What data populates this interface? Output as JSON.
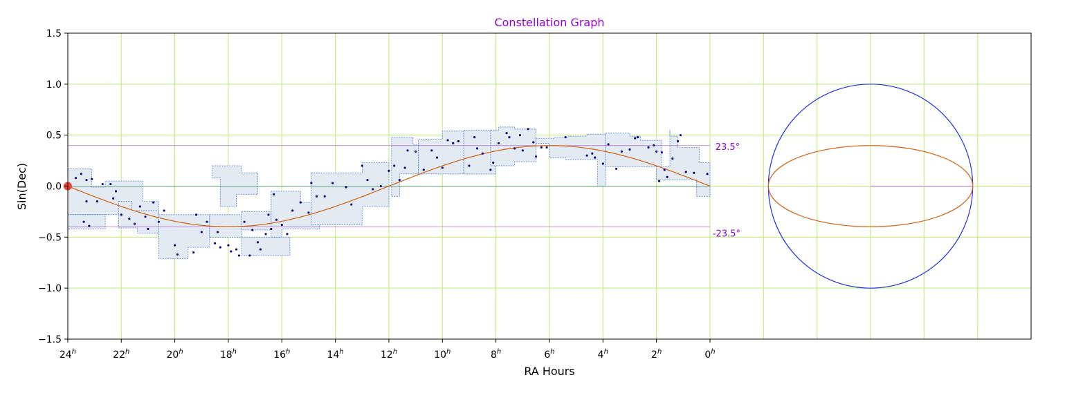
{
  "chart_data": {
    "type": "line",
    "title": "Constellation Graph",
    "xlabel": "RA Hours",
    "ylabel": "Sin(Dec)",
    "xlim": [
      24,
      0
    ],
    "ylim": [
      -1.5,
      1.5
    ],
    "x_ticks": [
      {
        "value": 24,
        "label": "24",
        "sup": "h"
      },
      {
        "value": 22,
        "label": "22",
        "sup": "h"
      },
      {
        "value": 20,
        "label": "20",
        "sup": "h"
      },
      {
        "value": 18,
        "label": "18",
        "sup": "h"
      },
      {
        "value": 16,
        "label": "16",
        "sup": "h"
      },
      {
        "value": 14,
        "label": "14",
        "sup": "h"
      },
      {
        "value": 12,
        "label": "12",
        "sup": "h"
      },
      {
        "value": 10,
        "label": "10",
        "sup": "h"
      },
      {
        "value": 8,
        "label": "8",
        "sup": "h"
      },
      {
        "value": 6,
        "label": "6",
        "sup": "h"
      },
      {
        "value": 4,
        "label": "4",
        "sup": "h"
      },
      {
        "value": 2,
        "label": "2",
        "sup": "h"
      },
      {
        "value": 0,
        "label": "0",
        "sup": "h"
      }
    ],
    "y_ticks": [
      {
        "value": 1.5,
        "label": "1.5"
      },
      {
        "value": 1.0,
        "label": "1.0"
      },
      {
        "value": 0.5,
        "label": "0.5"
      },
      {
        "value": 0.0,
        "label": "0.0"
      },
      {
        "value": -0.5,
        "label": "−0.5"
      },
      {
        "value": -1.0,
        "label": "−1.0"
      },
      {
        "value": -1.5,
        "label": "−1.5"
      }
    ],
    "grid": true,
    "colors": {
      "title": "#9400d3",
      "grid": "#b8ee70",
      "ecliptic": "#d2691e",
      "equator": "#2e8b57",
      "tropic": "#b36ad8",
      "circle": "#1f2fe8",
      "star": "#0a0a80",
      "marker": "#ee4433",
      "region_fill": "#e4eaf2",
      "region_edge": "#4a7fd8"
    },
    "annotations": [
      {
        "text": "23.5°",
        "x": -0.2,
        "y": 0.39
      },
      {
        "text": "-23.5°",
        "x": -0.1,
        "y": -0.46
      }
    ],
    "tropic_lines": [
      {
        "name": "tropic-north",
        "y": 0.398,
        "x": [
          24,
          0
        ]
      },
      {
        "name": "tropic-south",
        "y": -0.398,
        "x": [
          24,
          0
        ]
      }
    ],
    "equator_line": {
      "y": 0,
      "x": [
        24,
        0
      ]
    },
    "ecliptic": {
      "amplitude": 0.398,
      "x_start": 24,
      "x_end": 0
    },
    "marker": {
      "x": 24,
      "y": 0
    },
    "circle_view": {
      "center_x": -6,
      "center_y": 0,
      "radius": 1.0,
      "ellipse_ry": 0.398,
      "radius_line_to_x": -4
    },
    "regions": [
      [
        [
          24,
          0.17
        ],
        [
          23.1,
          0.17
        ],
        [
          23.1,
          -0.01
        ],
        [
          22.6,
          -0.01
        ],
        [
          22.6,
          0.05
        ],
        [
          21.2,
          0.05
        ],
        [
          21.2,
          -0.15
        ],
        [
          20.6,
          -0.15
        ],
        [
          20.6,
          -0.28
        ],
        [
          24,
          -0.28
        ]
      ],
      [
        [
          24,
          -0.28
        ],
        [
          22.6,
          -0.28
        ],
        [
          22.6,
          -0.42
        ],
        [
          24,
          -0.42
        ]
      ],
      [
        [
          22.1,
          -0.15
        ],
        [
          21.6,
          -0.15
        ],
        [
          21.6,
          -0.24
        ],
        [
          20.6,
          -0.24
        ],
        [
          20.6,
          -0.46
        ],
        [
          21.4,
          -0.46
        ],
        [
          21.4,
          -0.41
        ],
        [
          22.1,
          -0.41
        ]
      ],
      [
        [
          20.6,
          -0.28
        ],
        [
          18.7,
          -0.28
        ],
        [
          18.7,
          -0.6
        ],
        [
          19.5,
          -0.6
        ],
        [
          19.5,
          -0.71
        ],
        [
          20.6,
          -0.71
        ]
      ],
      [
        [
          18.6,
          0.2
        ],
        [
          17.5,
          0.2
        ],
        [
          17.5,
          0.13
        ],
        [
          16.9,
          0.13
        ],
        [
          16.9,
          -0.08
        ],
        [
          17.7,
          -0.08
        ],
        [
          17.7,
          -0.2
        ],
        [
          18.3,
          -0.2
        ],
        [
          18.3,
          0.08
        ],
        [
          18.6,
          0.08
        ]
      ],
      [
        [
          18.7,
          -0.28
        ],
        [
          17.5,
          -0.28
        ],
        [
          17.5,
          -0.5
        ],
        [
          18.7,
          -0.5
        ]
      ],
      [
        [
          17.5,
          -0.25
        ],
        [
          16.4,
          -0.25
        ],
        [
          16.4,
          -0.43
        ],
        [
          17.5,
          -0.43
        ]
      ],
      [
        [
          17.5,
          -0.5
        ],
        [
          15.7,
          -0.5
        ],
        [
          15.7,
          -0.68
        ],
        [
          17.5,
          -0.68
        ]
      ],
      [
        [
          16.4,
          -0.05
        ],
        [
          15.3,
          -0.05
        ],
        [
          15.3,
          -0.16
        ],
        [
          14.6,
          -0.16
        ],
        [
          14.6,
          -0.42
        ],
        [
          16.0,
          -0.42
        ],
        [
          16.0,
          -0.5
        ],
        [
          16.4,
          -0.5
        ]
      ],
      [
        [
          14.9,
          0.13
        ],
        [
          13.0,
          0.13
        ],
        [
          13.0,
          0.23
        ],
        [
          12.0,
          0.23
        ],
        [
          12.0,
          -0.2
        ],
        [
          13.0,
          -0.2
        ],
        [
          13.0,
          -0.38
        ],
        [
          14.9,
          -0.38
        ]
      ],
      [
        [
          11.9,
          0.48
        ],
        [
          11.1,
          0.48
        ],
        [
          11.1,
          0.41
        ],
        [
          10.9,
          0.41
        ],
        [
          10.9,
          0.12
        ],
        [
          11.6,
          0.12
        ],
        [
          11.6,
          -0.1
        ],
        [
          11.9,
          -0.1
        ]
      ],
      [
        [
          10.9,
          0.46
        ],
        [
          10.0,
          0.46
        ],
        [
          10.0,
          0.54
        ],
        [
          9.2,
          0.54
        ],
        [
          9.2,
          0.12
        ],
        [
          10.9,
          0.12
        ]
      ],
      [
        [
          9.2,
          0.55
        ],
        [
          8.0,
          0.55
        ],
        [
          8.0,
          0.12
        ],
        [
          9.2,
          0.12
        ]
      ],
      [
        [
          8.2,
          0.55
        ],
        [
          7.9,
          0.55
        ],
        [
          7.9,
          0.58
        ],
        [
          7.3,
          0.58
        ],
        [
          7.3,
          0.56
        ],
        [
          6.5,
          0.56
        ],
        [
          6.5,
          0.24
        ],
        [
          7.3,
          0.24
        ],
        [
          7.3,
          0.2
        ],
        [
          8.2,
          0.2
        ]
      ],
      [
        [
          6.5,
          0.47
        ],
        [
          5.8,
          0.47
        ],
        [
          5.8,
          0.48
        ],
        [
          5.3,
          0.48
        ],
        [
          5.3,
          0.49
        ],
        [
          4.6,
          0.49
        ],
        [
          4.6,
          0.51
        ],
        [
          3.9,
          0.51
        ],
        [
          3.9,
          0.0
        ],
        [
          4.2,
          0.0
        ],
        [
          4.2,
          0.26
        ],
        [
          5.4,
          0.26
        ],
        [
          5.4,
          0.28
        ],
        [
          6.0,
          0.28
        ],
        [
          6.0,
          0.42
        ],
        [
          6.5,
          0.42
        ]
      ],
      [
        [
          3.9,
          0.52
        ],
        [
          3.0,
          0.52
        ],
        [
          3.0,
          0.49
        ],
        [
          2.6,
          0.49
        ],
        [
          2.6,
          0.45
        ],
        [
          1.8,
          0.45
        ],
        [
          1.8,
          0.19
        ],
        [
          3.9,
          0.19
        ]
      ],
      [
        [
          1.5,
          0.55
        ],
        [
          1.5,
          0.49
        ],
        [
          1.2,
          0.49
        ],
        [
          1.2,
          0.38
        ],
        [
          0.4,
          0.38
        ],
        [
          0.4,
          0.23
        ],
        [
          0.0,
          0.23
        ],
        [
          0.0,
          -0.1
        ],
        [
          0.5,
          -0.1
        ],
        [
          0.5,
          0.06
        ],
        [
          2.0,
          0.06
        ],
        [
          2.0,
          0.19
        ],
        [
          1.5,
          0.19
        ]
      ]
    ],
    "stars": [
      [
        23.7,
        0.08
      ],
      [
        23.5,
        0.12
      ],
      [
        23.3,
        0.06
      ],
      [
        23.1,
        0.07
      ],
      [
        23.4,
        -0.35
      ],
      [
        23.3,
        -0.15
      ],
      [
        23.2,
        -0.39
      ],
      [
        22.9,
        -0.15
      ],
      [
        22.7,
        0.02
      ],
      [
        22.4,
        0.02
      ],
      [
        22.2,
        -0.05
      ],
      [
        22.3,
        -0.12
      ],
      [
        22.0,
        -0.28
      ],
      [
        21.7,
        -0.32
      ],
      [
        21.5,
        -0.37
      ],
      [
        21.3,
        -0.2
      ],
      [
        21.1,
        -0.3
      ],
      [
        21.0,
        -0.42
      ],
      [
        20.8,
        -0.16
      ],
      [
        20.6,
        -0.35
      ],
      [
        20.4,
        -0.24
      ],
      [
        20.0,
        -0.58
      ],
      [
        19.9,
        -0.67
      ],
      [
        19.3,
        -0.65
      ],
      [
        19.2,
        -0.28
      ],
      [
        19.0,
        -0.45
      ],
      [
        18.8,
        -0.35
      ],
      [
        18.5,
        -0.56
      ],
      [
        18.4,
        -0.45
      ],
      [
        18.3,
        -0.6
      ],
      [
        18.0,
        -0.58
      ],
      [
        17.9,
        -0.64
      ],
      [
        17.7,
        -0.62
      ],
      [
        17.6,
        -0.68
      ],
      [
        17.4,
        -0.35
      ],
      [
        17.2,
        -0.68
      ],
      [
        17.1,
        -0.43
      ],
      [
        16.9,
        -0.55
      ],
      [
        16.8,
        -0.62
      ],
      [
        16.6,
        -0.47
      ],
      [
        16.5,
        -0.28
      ],
      [
        16.4,
        -0.42
      ],
      [
        16.3,
        -0.08
      ],
      [
        16.2,
        -0.33
      ],
      [
        16.0,
        -0.38
      ],
      [
        15.8,
        -0.47
      ],
      [
        15.6,
        -0.24
      ],
      [
        15.3,
        -0.16
      ],
      [
        15.0,
        -0.26
      ],
      [
        14.9,
        0.03
      ],
      [
        14.7,
        -0.1
      ],
      [
        14.4,
        -0.1
      ],
      [
        14.1,
        0.03
      ],
      [
        13.6,
        -0.01
      ],
      [
        13.4,
        -0.18
      ],
      [
        13.0,
        0.2
      ],
      [
        12.8,
        0.06
      ],
      [
        12.6,
        -0.03
      ],
      [
        12.3,
        0.0
      ],
      [
        12.0,
        0.15
      ],
      [
        11.8,
        0.2
      ],
      [
        11.6,
        0.06
      ],
      [
        11.4,
        0.18
      ],
      [
        11.3,
        0.35
      ],
      [
        11.0,
        0.34
      ],
      [
        10.7,
        0.16
      ],
      [
        10.4,
        0.35
      ],
      [
        10.2,
        0.28
      ],
      [
        10.0,
        0.18
      ],
      [
        9.8,
        0.45
      ],
      [
        9.6,
        0.42
      ],
      [
        9.4,
        0.44
      ],
      [
        9.0,
        0.2
      ],
      [
        8.8,
        0.48
      ],
      [
        8.7,
        0.37
      ],
      [
        8.5,
        0.32
      ],
      [
        8.2,
        0.16
      ],
      [
        8.1,
        0.23
      ],
      [
        7.9,
        0.42
      ],
      [
        7.6,
        0.52
      ],
      [
        7.5,
        0.48
      ],
      [
        7.3,
        0.37
      ],
      [
        7.1,
        0.5
      ],
      [
        7.0,
        0.35
      ],
      [
        6.8,
        0.56
      ],
      [
        6.6,
        0.43
      ],
      [
        6.5,
        0.29
      ],
      [
        6.3,
        0.38
      ],
      [
        6.1,
        0.38
      ],
      [
        5.4,
        0.48
      ],
      [
        4.6,
        0.3
      ],
      [
        4.4,
        0.32
      ],
      [
        4.3,
        0.28
      ],
      [
        4.0,
        0.22
      ],
      [
        3.8,
        0.41
      ],
      [
        3.5,
        0.17
      ],
      [
        3.3,
        0.34
      ],
      [
        3.0,
        0.36
      ],
      [
        2.8,
        0.47
      ],
      [
        2.7,
        0.48
      ],
      [
        2.3,
        0.38
      ],
      [
        2.1,
        0.4
      ],
      [
        2.0,
        0.34
      ],
      [
        1.8,
        0.33
      ],
      [
        1.7,
        0.16
      ],
      [
        1.6,
        0.09
      ],
      [
        1.4,
        0.27
      ],
      [
        1.1,
        0.5
      ],
      [
        1.2,
        0.44
      ],
      [
        0.9,
        0.14
      ],
      [
        0.6,
        0.13
      ],
      [
        0.1,
        0.12
      ],
      [
        1.9,
        0.05
      ]
    ]
  }
}
